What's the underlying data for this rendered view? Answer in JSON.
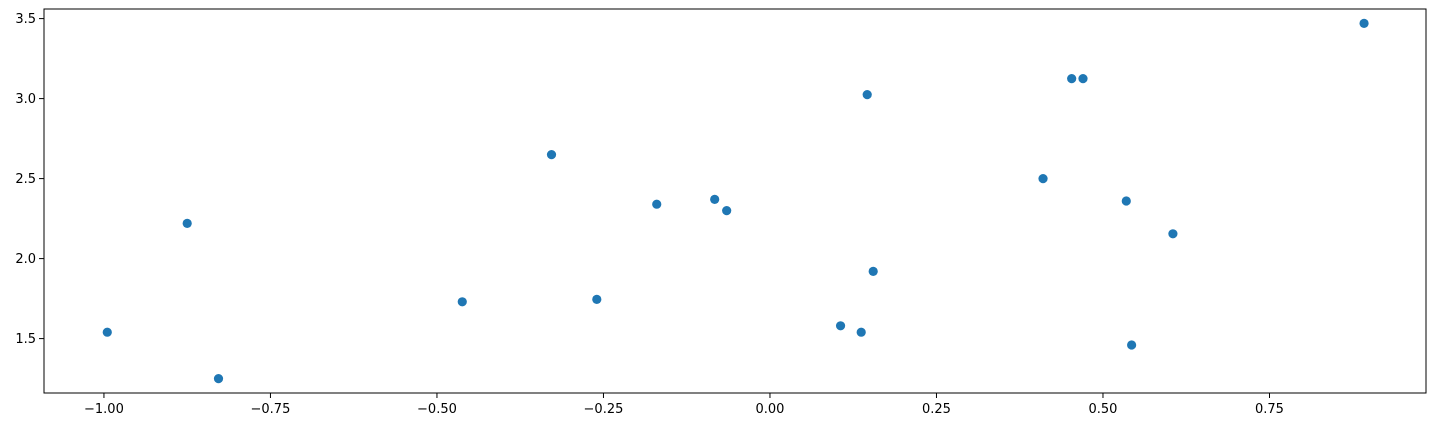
{
  "chart_data": {
    "type": "scatter",
    "title": "",
    "xlabel": "",
    "ylabel": "",
    "xlim": [
      -1.09,
      0.985
    ],
    "ylim": [
      1.16,
      3.56
    ],
    "x_ticks": [
      -1.0,
      -0.75,
      -0.5,
      -0.25,
      0.0,
      0.25,
      0.5,
      0.75
    ],
    "x_tick_labels": [
      "−1.00",
      "−0.75",
      "−0.50",
      "−0.25",
      "0.00",
      "0.25",
      "0.50",
      "0.75"
    ],
    "y_ticks": [
      1.5,
      2.0,
      2.5,
      3.0,
      3.5
    ],
    "y_tick_labels": [
      "1.5",
      "2.0",
      "2.5",
      "3.0",
      "3.5"
    ],
    "grid": false,
    "legend": "none",
    "series": [
      {
        "color": "#1f77b4",
        "points": [
          {
            "x": -0.995,
            "y": 1.54
          },
          {
            "x": -0.875,
            "y": 2.22
          },
          {
            "x": -0.828,
            "y": 1.25
          },
          {
            "x": -0.462,
            "y": 1.73
          },
          {
            "x": -0.328,
            "y": 2.65
          },
          {
            "x": -0.26,
            "y": 1.745
          },
          {
            "x": -0.17,
            "y": 2.34
          },
          {
            "x": -0.083,
            "y": 2.37
          },
          {
            "x": -0.065,
            "y": 2.3
          },
          {
            "x": 0.106,
            "y": 1.58
          },
          {
            "x": 0.137,
            "y": 1.54
          },
          {
            "x": 0.146,
            "y": 3.025
          },
          {
            "x": 0.155,
            "y": 1.92
          },
          {
            "x": 0.41,
            "y": 2.5
          },
          {
            "x": 0.453,
            "y": 3.125
          },
          {
            "x": 0.47,
            "y": 3.125
          },
          {
            "x": 0.535,
            "y": 2.36
          },
          {
            "x": 0.543,
            "y": 1.46
          },
          {
            "x": 0.605,
            "y": 2.155
          },
          {
            "x": 0.892,
            "y": 3.47
          }
        ]
      }
    ]
  }
}
